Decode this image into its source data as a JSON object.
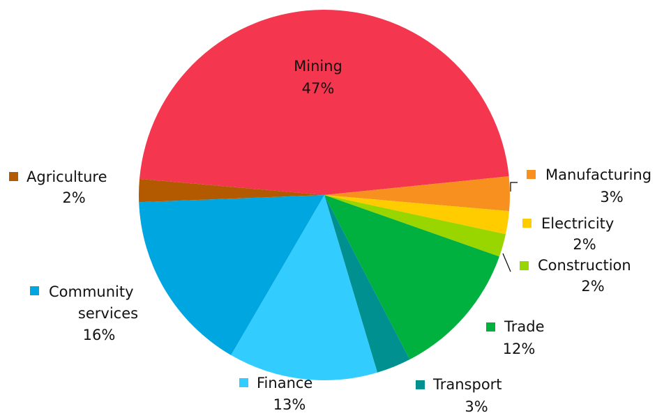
{
  "chart_data": {
    "type": "pie",
    "categories": [
      "Mining",
      "Manufacturing",
      "Electricity",
      "Construction",
      "Trade",
      "Transport",
      "Finance",
      "Community services",
      "Agriculture"
    ],
    "values": [
      47,
      3,
      2,
      2,
      12,
      3,
      13,
      16,
      2
    ],
    "value_labels": [
      "47%",
      "3%",
      "2%",
      "2%",
      "12%",
      "3%",
      "13%",
      "16%",
      "2%"
    ],
    "colors": [
      "#f5364f",
      "#f7901e",
      "#ffcc00",
      "#99d600",
      "#00b140",
      "#009090",
      "#33ccff",
      "#00a6e0",
      "#b35900"
    ]
  }
}
